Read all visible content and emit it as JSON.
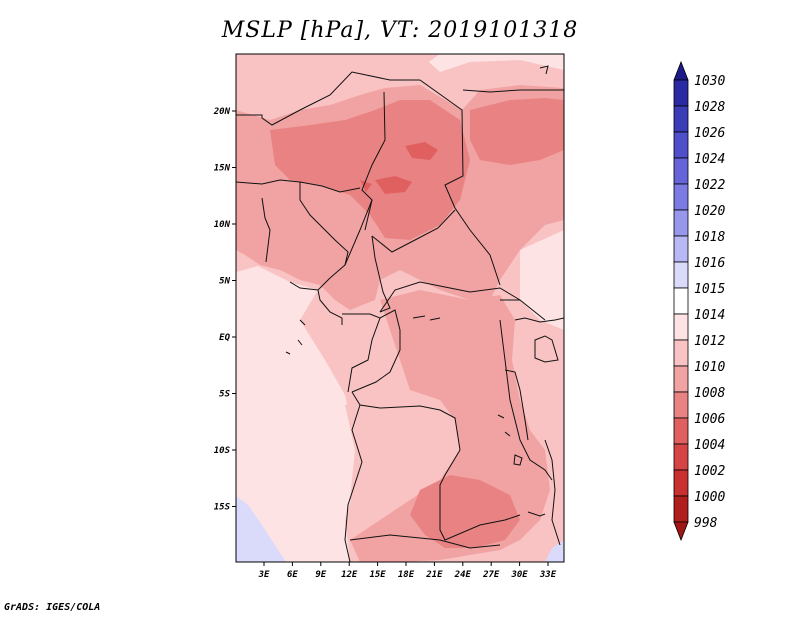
{
  "title": "MSLP [hPa], VT: 2019101318",
  "credit": "GrADS: IGES/COLA",
  "lat_labels": [
    "20N",
    "15N",
    "10N",
    "5N",
    "EQ",
    "5S",
    "10S",
    "15S"
  ],
  "lon_labels": [
    "3E",
    "6E",
    "9E",
    "12E",
    "15E",
    "18E",
    "21E",
    "24E",
    "27E",
    "30E",
    "33E"
  ],
  "colorbar": {
    "levels": [
      "1030",
      "1028",
      "1026",
      "1024",
      "1022",
      "1020",
      "1018",
      "1016",
      "1015",
      "1014",
      "1012",
      "1010",
      "1008",
      "1006",
      "1004",
      "1002",
      "1000",
      "998"
    ],
    "colors": [
      "#1d1a8a",
      "#2a2aa5",
      "#3b3cb8",
      "#4f4fcc",
      "#6565d9",
      "#7b7be3",
      "#9797ec",
      "#b8b8f4",
      "#dadafb",
      "#ffffff",
      "#fde3e3",
      "#f9c3c3",
      "#f1a3a3",
      "#e98383",
      "#e06060",
      "#d64545",
      "#c93030",
      "#b01e1e",
      "#a01515"
    ]
  }
}
